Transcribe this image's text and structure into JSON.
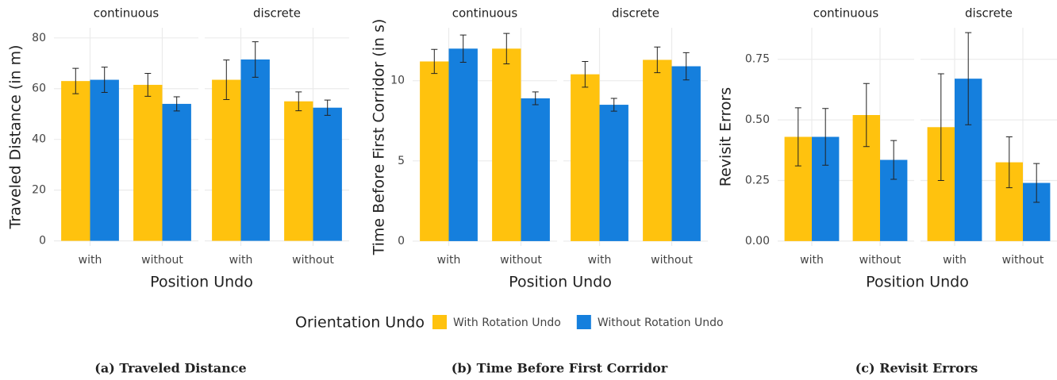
{
  "legend_title": "Orientation Undo",
  "chart_data": [
    {
      "type": "bar",
      "caption": "(a) Traveled Distance",
      "y_label": "Traveled Distance (in m)",
      "x_label": "Position Undo",
      "facets": [
        "continuous",
        "discrete"
      ],
      "categories": [
        "with",
        "without"
      ],
      "ylim": [
        -2,
        84
      ],
      "yticks": [
        0,
        20,
        40,
        60,
        80
      ],
      "grid": true,
      "series": [
        {
          "name": "With Rotation Undo",
          "color": "#FFC20E",
          "values": [
            [
              63,
              61.5
            ],
            [
              63.5,
              55
            ]
          ],
          "errors": [
            [
              5,
              4.5
            ],
            [
              7.8,
              3.7
            ]
          ]
        },
        {
          "name": "Without Rotation Undo",
          "color": "#157FDD",
          "values": [
            [
              63.5,
              54
            ],
            [
              71.5,
              52.5
            ]
          ],
          "errors": [
            [
              5,
              2.8
            ],
            [
              7,
              3
            ]
          ]
        }
      ]
    },
    {
      "type": "bar",
      "caption": "(b) Time Before First Corridor",
      "y_label": "Time Before First Corridor (in s)",
      "x_label": "Position Undo",
      "facets": [
        "continuous",
        "discrete"
      ],
      "categories": [
        "with",
        "without"
      ],
      "ylim": [
        -0.3,
        13.3
      ],
      "yticks": [
        0,
        5,
        10
      ],
      "grid": true,
      "series": [
        {
          "name": "With Rotation Undo",
          "color": "#FFC20E",
          "values": [
            [
              11.2,
              12.0
            ],
            [
              10.4,
              11.3
            ]
          ],
          "errors": [
            [
              0.75,
              0.95
            ],
            [
              0.8,
              0.8
            ]
          ]
        },
        {
          "name": "Without Rotation Undo",
          "color": "#157FDD",
          "values": [
            [
              12.0,
              8.9
            ],
            [
              8.5,
              10.9
            ]
          ],
          "errors": [
            [
              0.85,
              0.4
            ],
            [
              0.4,
              0.85
            ]
          ]
        }
      ]
    },
    {
      "type": "bar",
      "caption": "(c) Revisit Errors",
      "y_label": "Revisit Errors",
      "x_label": "Position Undo",
      "facets": [
        "continuous",
        "discrete"
      ],
      "categories": [
        "with",
        "without"
      ],
      "ylim": [
        -0.02,
        0.88
      ],
      "yticks": [
        {
          "value": 0,
          "label": "0.00"
        },
        {
          "value": 0.25,
          "label": "0.25"
        },
        {
          "value": 0.5,
          "label": "0.50"
        },
        {
          "value": 0.75,
          "label": "0.75"
        }
      ],
      "grid": true,
      "series": [
        {
          "name": "With Rotation Undo",
          "color": "#FFC20E",
          "values": [
            [
              0.43,
              0.52
            ],
            [
              0.47,
              0.325
            ]
          ],
          "errors": [
            [
              0.12,
              0.13
            ],
            [
              0.22,
              0.105
            ]
          ]
        },
        {
          "name": "Without Rotation Undo",
          "color": "#157FDD",
          "values": [
            [
              0.43,
              0.335
            ],
            [
              0.67,
              0.24
            ]
          ],
          "errors": [
            [
              0.117,
              0.08
            ],
            [
              0.19,
              0.08
            ]
          ]
        }
      ]
    }
  ]
}
